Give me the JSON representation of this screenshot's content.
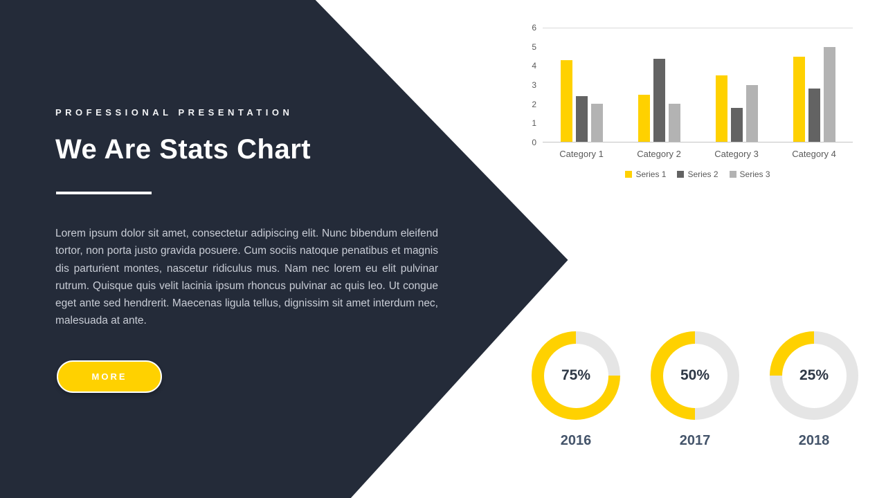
{
  "slide": {
    "kicker": "PROFESSIONAL PRESENTATION",
    "title": "We Are Stats Chart",
    "body": "Lorem ipsum dolor sit amet, consectetur adipiscing elit. Nunc bibendum eleifend tortor, non porta justo gravida posuere. Cum sociis natoque penatibus et magnis dis parturient montes, nascetur ridiculus mus. Nam nec lorem eu elit pulvinar rutrum. Quisque quis velit lacinia ipsum rhoncus pulvinar ac quis leo. Ut congue eget ante sed hendrerit. Maecenas ligula tellus, dignissim sit amet interdum nec, malesuada at ante.",
    "more_label": "MORE"
  },
  "colors": {
    "accent_yellow": "#FFD100",
    "dark_panel": "#242B39",
    "series2_gray": "#636363",
    "series3_gray": "#B3B3B3",
    "donut_track": "#E5E5E5"
  },
  "chart_data": [
    {
      "type": "bar",
      "title": "",
      "xlabel": "",
      "ylabel": "",
      "categories": [
        "Category 1",
        "Category 2",
        "Category 3",
        "Category 4"
      ],
      "series": [
        {
          "name": "Series 1",
          "color": "#FFD100",
          "values": [
            4.3,
            2.5,
            3.5,
            4.5
          ]
        },
        {
          "name": "Series 2",
          "color": "#636363",
          "values": [
            2.4,
            4.4,
            1.8,
            2.8
          ]
        },
        {
          "name": "Series 3",
          "color": "#B3B3B3",
          "values": [
            2.0,
            2.0,
            3.0,
            5.0
          ]
        }
      ],
      "ylim": [
        0,
        6
      ],
      "yticks": [
        0,
        1,
        2,
        3,
        4,
        5,
        6
      ],
      "grid": false,
      "legend_position": "bottom"
    },
    {
      "type": "donut",
      "items": [
        {
          "label": "2016",
          "value": 75,
          "display": "75%"
        },
        {
          "label": "2017",
          "value": 50,
          "display": "50%"
        },
        {
          "label": "2018",
          "value": 25,
          "display": "25%"
        }
      ]
    }
  ]
}
